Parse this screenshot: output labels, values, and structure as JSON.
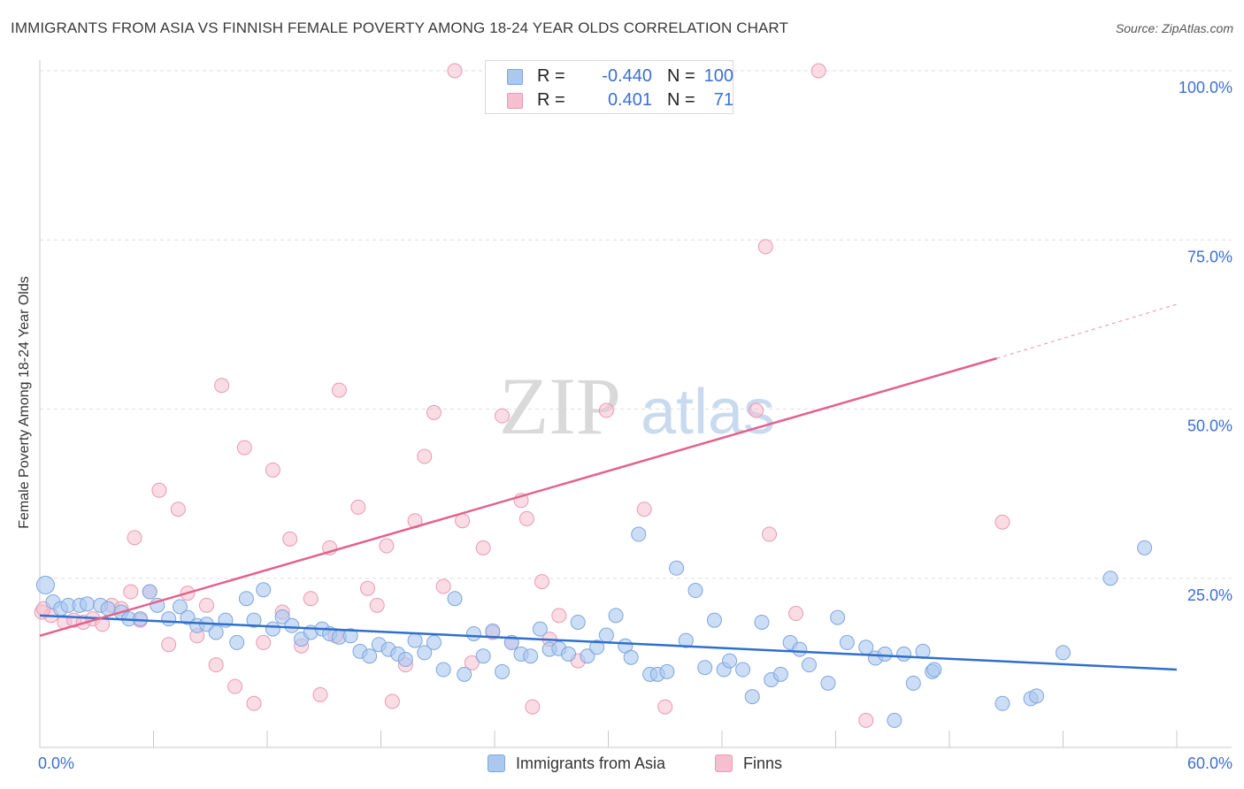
{
  "title": "IMMIGRANTS FROM ASIA VS FINNISH FEMALE POVERTY AMONG 18-24 YEAR OLDS CORRELATION CHART",
  "source": "Source: ZipAtlas.com",
  "watermark": {
    "zip": "ZIP",
    "atlas": "atlas"
  },
  "colors": {
    "blue_fill": "#aac8f0",
    "blue_stroke": "#7ea6dc",
    "blue_line": "#2f6fce",
    "pink_fill": "#f6bfd0",
    "pink_stroke": "#e89ab3",
    "pink_line": "#e2628d",
    "tick_label": "#3b6fd1",
    "grid": "#dedede"
  },
  "legend": {
    "rows": [
      {
        "r_label": "R =",
        "r_value": "-0.440",
        "n_label": "N =",
        "n_value": "100",
        "color": "#aac8f0",
        "stroke": "#7ea6dc"
      },
      {
        "r_label": "R =",
        "r_value": "0.401",
        "n_label": "N =",
        "n_value": "71",
        "color": "#f6bfd0",
        "stroke": "#e89ab3"
      }
    ],
    "series": [
      {
        "name": "Immigrants from Asia",
        "color": "#aac8f0",
        "stroke": "#7ea6dc"
      },
      {
        "name": "Finns",
        "color": "#f6bfd0",
        "stroke": "#e89ab3"
      }
    ]
  },
  "chart_data": {
    "type": "scatter",
    "title": "IMMIGRANTS FROM ASIA VS FINNISH FEMALE POVERTY AMONG 18-24 YEAR OLDS CORRELATION CHART",
    "xlabel": "",
    "ylabel": "Female Poverty Among 18-24 Year Olds",
    "xlim": [
      0,
      60
    ],
    "ylim": [
      0,
      100
    ],
    "x_tick_labels": [
      "0.0%",
      "60.0%"
    ],
    "y_ticks": [
      25,
      50,
      75,
      100
    ],
    "y_tick_labels": [
      "25.0%",
      "50.0%",
      "75.0%",
      "100.0%"
    ],
    "grid": true,
    "series": [
      {
        "name": "Immigrants from Asia",
        "r": -0.44,
        "n": 100,
        "trend": {
          "x0": 0,
          "y0": 19.5,
          "x1": 60,
          "y1": 11.5
        },
        "points": [
          [
            0.3,
            24.0
          ],
          [
            0.7,
            21.5
          ],
          [
            1.1,
            20.5
          ],
          [
            1.5,
            21.0
          ],
          [
            2.1,
            21.0
          ],
          [
            2.5,
            21.2
          ],
          [
            3.2,
            21.0
          ],
          [
            3.6,
            20.5
          ],
          [
            4.3,
            20.0
          ],
          [
            4.7,
            19.0
          ],
          [
            5.3,
            19.0
          ],
          [
            5.8,
            23.0
          ],
          [
            6.2,
            21.0
          ],
          [
            6.8,
            19.0
          ],
          [
            7.4,
            20.8
          ],
          [
            7.8,
            19.2
          ],
          [
            8.3,
            18.0
          ],
          [
            8.8,
            18.2
          ],
          [
            9.3,
            17.0
          ],
          [
            9.8,
            18.8
          ],
          [
            10.4,
            15.5
          ],
          [
            10.9,
            22.0
          ],
          [
            11.3,
            18.8
          ],
          [
            11.8,
            23.3
          ],
          [
            12.3,
            17.5
          ],
          [
            12.8,
            19.3
          ],
          [
            13.3,
            18.0
          ],
          [
            13.8,
            16.0
          ],
          [
            14.3,
            17.0
          ],
          [
            14.9,
            17.5
          ],
          [
            15.3,
            16.8
          ],
          [
            15.8,
            16.3
          ],
          [
            16.4,
            16.5
          ],
          [
            16.9,
            14.2
          ],
          [
            17.4,
            13.5
          ],
          [
            17.9,
            15.2
          ],
          [
            18.4,
            14.5
          ],
          [
            18.9,
            13.8
          ],
          [
            19.3,
            13.0
          ],
          [
            19.8,
            15.8
          ],
          [
            20.3,
            14.0
          ],
          [
            20.8,
            15.5
          ],
          [
            21.3,
            11.5
          ],
          [
            21.9,
            22.0
          ],
          [
            22.4,
            10.8
          ],
          [
            22.9,
            16.8
          ],
          [
            23.4,
            13.5
          ],
          [
            23.9,
            17.2
          ],
          [
            24.4,
            11.2
          ],
          [
            24.9,
            15.5
          ],
          [
            25.4,
            13.8
          ],
          [
            25.9,
            13.5
          ],
          [
            26.4,
            17.5
          ],
          [
            26.9,
            14.5
          ],
          [
            27.4,
            14.6
          ],
          [
            27.9,
            13.8
          ],
          [
            28.4,
            18.5
          ],
          [
            28.9,
            13.5
          ],
          [
            29.4,
            14.8
          ],
          [
            29.9,
            16.6
          ],
          [
            30.4,
            19.5
          ],
          [
            30.9,
            15.0
          ],
          [
            31.2,
            13.3
          ],
          [
            31.6,
            31.5
          ],
          [
            32.2,
            10.8
          ],
          [
            32.6,
            10.8
          ],
          [
            33.1,
            11.2
          ],
          [
            33.6,
            26.5
          ],
          [
            34.1,
            15.8
          ],
          [
            34.6,
            23.2
          ],
          [
            35.1,
            11.8
          ],
          [
            35.6,
            18.8
          ],
          [
            36.1,
            11.5
          ],
          [
            36.4,
            12.8
          ],
          [
            37.1,
            11.5
          ],
          [
            37.6,
            7.5
          ],
          [
            38.1,
            18.5
          ],
          [
            38.6,
            10.0
          ],
          [
            39.1,
            10.8
          ],
          [
            39.6,
            15.5
          ],
          [
            40.1,
            14.5
          ],
          [
            40.6,
            12.2
          ],
          [
            41.6,
            9.5
          ],
          [
            42.1,
            19.2
          ],
          [
            42.6,
            15.5
          ],
          [
            43.6,
            14.8
          ],
          [
            44.1,
            13.2
          ],
          [
            44.6,
            13.8
          ],
          [
            45.1,
            4.0
          ],
          [
            45.6,
            13.8
          ],
          [
            46.1,
            9.5
          ],
          [
            46.6,
            14.2
          ],
          [
            47.1,
            11.2
          ],
          [
            47.2,
            11.5
          ],
          [
            50.8,
            6.5
          ],
          [
            52.3,
            7.2
          ],
          [
            52.6,
            7.6
          ],
          [
            54.0,
            14.0
          ],
          [
            56.5,
            25.0
          ],
          [
            58.3,
            29.5
          ]
        ]
      },
      {
        "name": "Finns",
        "r": 0.401,
        "n": 71,
        "trend": {
          "x0": 0,
          "y0": 16.5,
          "x1": 50.5,
          "y1": 57.5,
          "dash_to_x": 60,
          "dash_to_y": 65.5
        },
        "points": [
          [
            0.1,
            20.0
          ],
          [
            0.6,
            19.5
          ],
          [
            1.3,
            18.5
          ],
          [
            1.8,
            18.8
          ],
          [
            2.3,
            18.5
          ],
          [
            2.8,
            19.0
          ],
          [
            3.3,
            18.2
          ],
          [
            3.8,
            21.0
          ],
          [
            4.3,
            20.5
          ],
          [
            4.8,
            23.0
          ],
          [
            5.0,
            31.0
          ],
          [
            5.3,
            18.8
          ],
          [
            5.8,
            23.0
          ],
          [
            6.3,
            38.0
          ],
          [
            6.8,
            15.2
          ],
          [
            7.3,
            35.2
          ],
          [
            7.8,
            22.8
          ],
          [
            8.3,
            16.5
          ],
          [
            8.8,
            21.0
          ],
          [
            9.3,
            12.2
          ],
          [
            9.6,
            53.5
          ],
          [
            10.3,
            9.0
          ],
          [
            10.8,
            44.3
          ],
          [
            11.3,
            6.5
          ],
          [
            11.8,
            15.5
          ],
          [
            12.3,
            41.0
          ],
          [
            12.8,
            20.0
          ],
          [
            13.2,
            30.8
          ],
          [
            13.8,
            15.0
          ],
          [
            14.3,
            22.0
          ],
          [
            14.8,
            7.8
          ],
          [
            15.3,
            29.5
          ],
          [
            15.6,
            16.5
          ],
          [
            15.8,
            52.8
          ],
          [
            16.8,
            35.5
          ],
          [
            17.3,
            23.5
          ],
          [
            17.8,
            21.0
          ],
          [
            18.3,
            29.8
          ],
          [
            18.6,
            6.8
          ],
          [
            19.3,
            12.2
          ],
          [
            19.8,
            33.5
          ],
          [
            20.3,
            43.0
          ],
          [
            20.8,
            49.5
          ],
          [
            21.3,
            23.8
          ],
          [
            22.3,
            33.5
          ],
          [
            22.8,
            12.5
          ],
          [
            23.4,
            29.5
          ],
          [
            23.9,
            17.0
          ],
          [
            24.4,
            49.0
          ],
          [
            24.9,
            15.5
          ],
          [
            25.4,
            36.5
          ],
          [
            25.7,
            33.8
          ],
          [
            26.0,
            6.0
          ],
          [
            26.5,
            24.5
          ],
          [
            26.9,
            16.0
          ],
          [
            27.4,
            19.5
          ],
          [
            28.4,
            12.8
          ],
          [
            29.9,
            49.8
          ],
          [
            31.9,
            35.2
          ],
          [
            33.0,
            6.0
          ],
          [
            37.8,
            49.8
          ],
          [
            38.3,
            74.0
          ],
          [
            38.5,
            31.5
          ],
          [
            39.9,
            19.8
          ],
          [
            43.6,
            4.0
          ],
          [
            50.8,
            33.3
          ],
          [
            21.9,
            100.0
          ],
          [
            34.9,
            100.0
          ],
          [
            36.1,
            100.0
          ],
          [
            41.1,
            100.0
          ],
          [
            0.2,
            20.5
          ]
        ]
      }
    ]
  }
}
